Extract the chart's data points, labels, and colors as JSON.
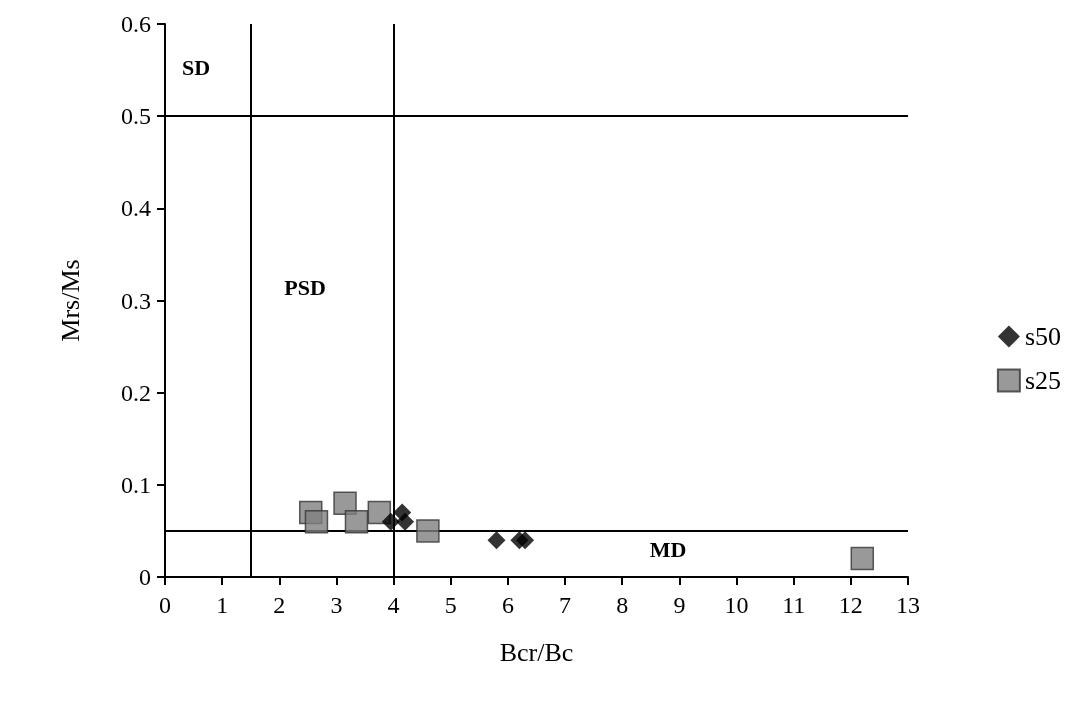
{
  "chart_data": {
    "type": "scatter",
    "xlabel": "Bcr/Bc",
    "ylabel": "Mrs/Ms",
    "series": [
      {
        "name": "s50",
        "color": "#000000",
        "marker": "diamond",
        "x": [
          3.95,
          4.15,
          4.2,
          5.8,
          6.2,
          6.3
        ],
        "values": [
          0.06,
          0.07,
          0.06,
          0.04,
          0.04,
          0.04
        ]
      },
      {
        "name": "s25",
        "color": "#808080",
        "marker": "square",
        "x": [
          2.55,
          2.65,
          3.15,
          3.35,
          3.75,
          4.6,
          12.2
        ],
        "values": [
          0.07,
          0.06,
          0.08,
          0.06,
          0.07,
          0.05,
          0.02
        ]
      }
    ],
    "xlim": [
      0,
      13
    ],
    "xticks": [
      0,
      1,
      2,
      3,
      4,
      5,
      6,
      7,
      8,
      9,
      10,
      11,
      12,
      13
    ],
    "ylim": [
      0,
      0.6
    ],
    "yticks": [
      0,
      0.1,
      0.2,
      0.3,
      0.4,
      0.5,
      0.6
    ],
    "ref_lines": [
      {
        "axis": "x",
        "value": 1.5,
        "color": "#000000"
      },
      {
        "axis": "x",
        "value": 4,
        "color": "#000000"
      },
      {
        "axis": "y",
        "value": 0.5,
        "color": "#000000"
      },
      {
        "axis": "y",
        "value": 0.05,
        "color": "#000000"
      }
    ],
    "annotations": [
      "SD",
      "PSD",
      "MD"
    ],
    "grid": false,
    "legend": "right"
  }
}
